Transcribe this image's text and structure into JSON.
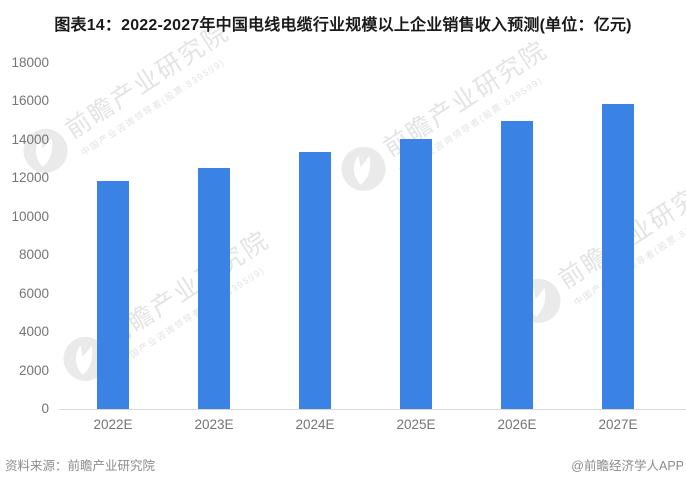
{
  "title": "图表14：2022-2027年中国电线电缆行业规模以上企业销售收入预测(单位：亿元)",
  "chart_data": {
    "type": "bar",
    "title": "图表14：2022-2027年中国电线电缆行业规模以上企业销售收入预测(单位：亿元)",
    "categories": [
      "2022E",
      "2023E",
      "2024E",
      "2025E",
      "2026E",
      "2027E"
    ],
    "values": [
      11850,
      12550,
      13350,
      14050,
      15000,
      15850
    ],
    "unit": "亿元",
    "xlabel": "",
    "ylabel": "",
    "ylim": [
      0,
      18000
    ],
    "ytick_interval": 2000,
    "ytick_labels": [
      "0",
      "2000",
      "4000",
      "6000",
      "8000",
      "10000",
      "12000",
      "14000",
      "16000",
      "18000"
    ],
    "bar_color": "#3a83e5",
    "grid": false,
    "legend_position": "none"
  },
  "footer": {
    "source": "资料来源：前瞻产业研究院",
    "credit": "@前瞻经济学人APP"
  },
  "watermark": {
    "logo_icon": "qianzhan-bird-logo",
    "text": "前瞻产业研究院",
    "subtext": "中国产业咨询领导者(股票:839599)"
  }
}
